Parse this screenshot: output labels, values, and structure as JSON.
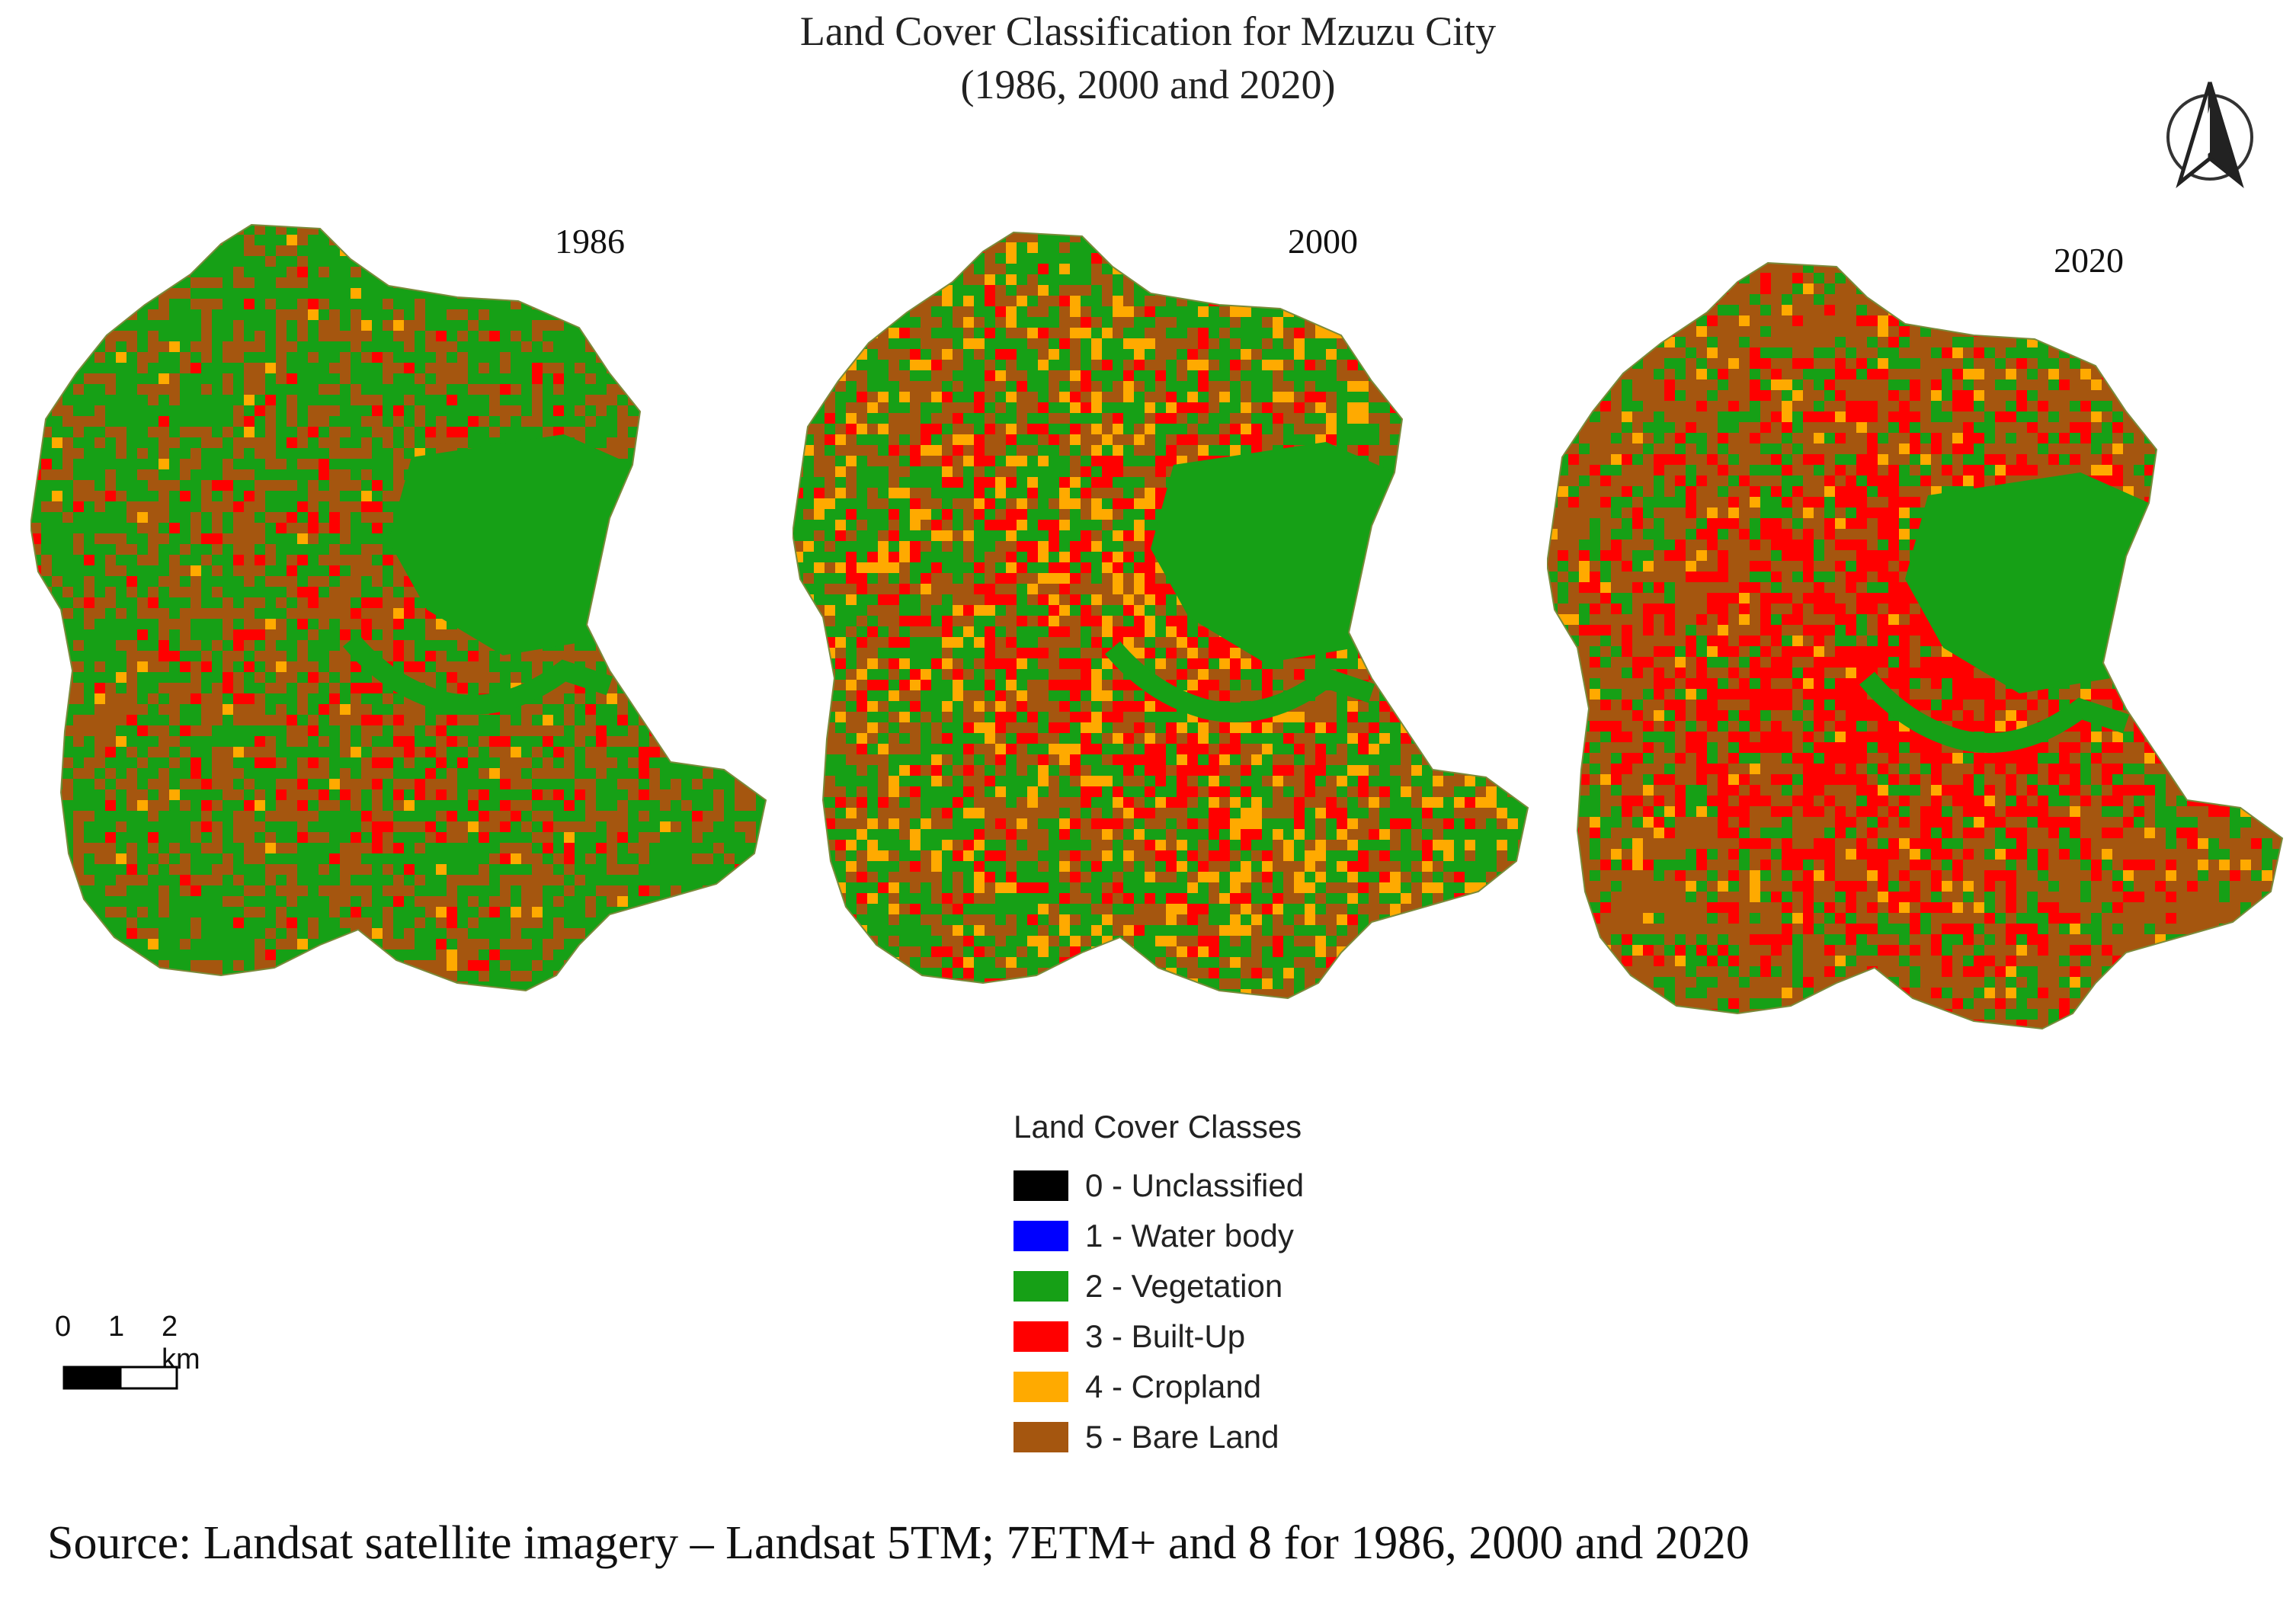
{
  "title": {
    "line1": "Land Cover Classification for Mzuzu City",
    "line2": "(1986, 2000 and 2020)"
  },
  "maps": [
    {
      "year": "1986"
    },
    {
      "year": "2000"
    },
    {
      "year": "2020"
    }
  ],
  "legend": {
    "title": "Land Cover Classes",
    "classes": [
      {
        "label": "0 - Unclassified",
        "color": "#000000"
      },
      {
        "label": "1 - Water body",
        "color": "#0000ff"
      },
      {
        "label": "2 - Vegetation",
        "color": "#16a016"
      },
      {
        "label": "3 - Built-Up",
        "color": "#ff0000"
      },
      {
        "label": "4 - Cropland",
        "color": "#ffaa00"
      },
      {
        "label": "5 - Bare Land",
        "color": "#a5560f"
      }
    ]
  },
  "scale": {
    "labels": [
      "0",
      "1",
      "2 km"
    ]
  },
  "north_arrow": {
    "icon": "north-arrow-icon"
  },
  "source": "Source: Landsat satellite imagery – Landsat 5TM; 7ETM+ and 8 for 1986, 2000 and 2020"
}
